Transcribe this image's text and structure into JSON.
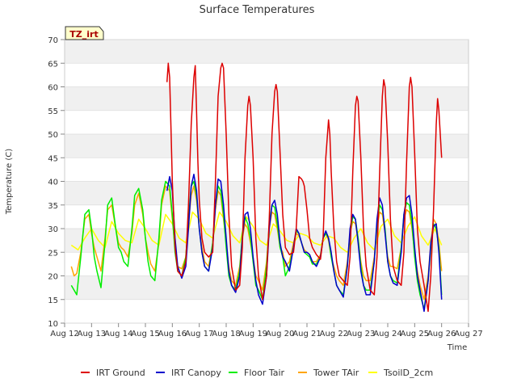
{
  "chart_data": {
    "type": "line",
    "title": "Surface Temperatures",
    "xlabel": "Time",
    "ylabel": "Temperature (C)",
    "annotation": "TZ_irt",
    "xlim": [
      12,
      27
    ],
    "ylim": [
      10,
      70
    ],
    "x_ticks": [
      12,
      13,
      14,
      15,
      16,
      17,
      18,
      19,
      20,
      21,
      22,
      23,
      24,
      25,
      26,
      27
    ],
    "x_tick_labels": [
      "Aug 12",
      "Aug 13",
      "Aug 14",
      "Aug 15",
      "Aug 16",
      "Aug 17",
      "Aug 18",
      "Aug 19",
      "Aug 20",
      "Aug 21",
      "Aug 22",
      "Aug 23",
      "Aug 24",
      "Aug 25",
      "Aug 26",
      "Aug 27"
    ],
    "y_ticks": [
      10,
      15,
      20,
      25,
      30,
      35,
      40,
      45,
      50,
      55,
      60,
      65,
      70
    ],
    "y_tick_labels": [
      "10",
      "15",
      "20",
      "25",
      "30",
      "35",
      "40",
      "45",
      "50",
      "55",
      "60",
      "65",
      "70"
    ],
    "grid": true,
    "legend_position": "bottom",
    "series": [
      {
        "name": "IRT Ground",
        "color": "#dd0000",
        "x": [
          15.8,
          15.85,
          15.9,
          15.95,
          16.0,
          16.1,
          16.2,
          16.35,
          16.5,
          16.6,
          16.7,
          16.8,
          16.85,
          16.9,
          16.95,
          17.0,
          17.1,
          17.2,
          17.35,
          17.5,
          17.6,
          17.7,
          17.8,
          17.85,
          17.9,
          18.0,
          18.1,
          18.2,
          18.35,
          18.5,
          18.6,
          18.7,
          18.8,
          18.85,
          18.9,
          19.0,
          19.1,
          19.2,
          19.35,
          19.5,
          19.6,
          19.7,
          19.8,
          19.85,
          19.9,
          20.0,
          20.1,
          20.2,
          20.35,
          20.5,
          20.6,
          20.7,
          20.8,
          20.85,
          20.9,
          21.0,
          21.1,
          21.2,
          21.35,
          21.5,
          21.6,
          21.7,
          21.8,
          21.85,
          21.9,
          22.0,
          22.1,
          22.2,
          22.35,
          22.5,
          22.6,
          22.7,
          22.8,
          22.85,
          22.9,
          23.0,
          23.1,
          23.2,
          23.35,
          23.5,
          23.6,
          23.7,
          23.8,
          23.85,
          23.9,
          24.0,
          24.1,
          24.2,
          24.35,
          24.5,
          24.6,
          24.7,
          24.8,
          24.85,
          24.9,
          25.0,
          25.1,
          25.2,
          25.35,
          25.5,
          25.6,
          25.7,
          25.8,
          25.85,
          25.9,
          26.0
        ],
        "y": [
          61.0,
          65.0,
          62.0,
          51.0,
          40.0,
          26.0,
          21.0,
          20.0,
          23.0,
          35.0,
          52.0,
          62.0,
          64.5,
          55.0,
          44.0,
          36.0,
          28.0,
          25.0,
          24.0,
          25.0,
          40.0,
          58.0,
          64.0,
          65.0,
          64.0,
          50.0,
          33.0,
          22.0,
          17.0,
          18.0,
          26.0,
          45.0,
          56.0,
          58.0,
          56.0,
          45.0,
          28.0,
          20.0,
          15.0,
          20.0,
          32.0,
          50.0,
          59.0,
          60.5,
          59.0,
          46.0,
          33.0,
          26.0,
          24.5,
          25.0,
          30.0,
          41.0,
          40.5,
          40.0,
          39.0,
          34.0,
          28.0,
          26.0,
          24.5,
          23.5,
          28.0,
          45.0,
          53.0,
          50.0,
          42.0,
          30.0,
          23.0,
          20.0,
          19.0,
          18.0,
          24.0,
          42.0,
          56.0,
          58.0,
          57.0,
          45.0,
          30.0,
          22.0,
          17.0,
          16.0,
          24.0,
          42.0,
          58.0,
          61.5,
          60.0,
          48.0,
          32.0,
          22.0,
          19.0,
          18.0,
          25.0,
          44.0,
          60.0,
          62.0,
          60.0,
          46.0,
          30.0,
          23.0,
          18.0,
          12.5,
          20.0,
          34.0,
          52.0,
          57.5,
          55.0,
          45.0
        ]
      },
      {
        "name": "IRT Canopy",
        "color": "#0000cc",
        "x": [
          15.8,
          15.9,
          16.0,
          16.1,
          16.2,
          16.35,
          16.5,
          16.6,
          16.7,
          16.8,
          16.9,
          17.0,
          17.1,
          17.2,
          17.35,
          17.5,
          17.6,
          17.7,
          17.8,
          17.9,
          18.0,
          18.1,
          18.2,
          18.35,
          18.5,
          18.6,
          18.7,
          18.8,
          18.9,
          19.0,
          19.1,
          19.2,
          19.35,
          19.5,
          19.6,
          19.7,
          19.8,
          19.9,
          20.0,
          20.1,
          20.2,
          20.35,
          20.5,
          20.6,
          20.7,
          20.8,
          20.9,
          21.0,
          21.1,
          21.2,
          21.35,
          21.5,
          21.6,
          21.7,
          21.8,
          21.9,
          22.0,
          22.1,
          22.2,
          22.35,
          22.5,
          22.6,
          22.7,
          22.8,
          22.9,
          23.0,
          23.1,
          23.2,
          23.35,
          23.5,
          23.6,
          23.7,
          23.8,
          23.9,
          24.0,
          24.1,
          24.2,
          24.35,
          24.5,
          24.6,
          24.7,
          24.8,
          24.9,
          25.0,
          25.1,
          25.2,
          25.35,
          25.5,
          25.6,
          25.7,
          25.8,
          25.9,
          26.0
        ],
        "y": [
          38.0,
          41.0,
          38.0,
          28.0,
          22.0,
          19.5,
          22.0,
          30.0,
          39.0,
          41.5,
          38.0,
          30.0,
          25.0,
          22.0,
          21.0,
          26.0,
          35.0,
          40.5,
          40.0,
          35.0,
          28.0,
          21.0,
          18.0,
          16.5,
          20.0,
          28.0,
          33.0,
          33.5,
          30.0,
          24.0,
          19.0,
          16.0,
          14.0,
          20.0,
          30.0,
          35.0,
          36.0,
          33.0,
          27.0,
          24.0,
          23.0,
          21.0,
          26.0,
          30.0,
          29.0,
          27.0,
          25.0,
          25.0,
          24.5,
          23.0,
          22.0,
          24.0,
          28.0,
          29.5,
          28.0,
          25.0,
          21.0,
          18.0,
          17.0,
          15.5,
          22.0,
          30.0,
          33.0,
          32.0,
          27.0,
          21.0,
          18.0,
          16.0,
          16.0,
          23.0,
          32.0,
          36.5,
          35.0,
          29.0,
          23.0,
          20.0,
          18.5,
          18.0,
          25.0,
          33.0,
          36.5,
          37.0,
          33.0,
          26.0,
          20.0,
          17.0,
          12.5,
          19.0,
          27.0,
          30.5,
          31.0,
          25.0,
          15.0
        ]
      },
      {
        "name": "Floor Tair",
        "color": "#00ee00",
        "x": [
          12.25,
          12.35,
          12.45,
          12.6,
          12.75,
          12.9,
          13.0,
          13.1,
          13.2,
          13.35,
          13.5,
          13.6,
          13.75,
          13.9,
          14.0,
          14.1,
          14.2,
          14.35,
          14.5,
          14.6,
          14.75,
          14.9,
          15.0,
          15.1,
          15.2,
          15.35,
          15.5,
          15.6,
          15.75,
          15.9,
          16.0,
          16.1,
          16.2,
          16.35,
          16.5,
          16.6,
          16.7,
          16.8,
          16.9,
          17.0,
          17.1,
          17.2,
          17.35,
          17.5,
          17.6,
          17.7,
          17.8,
          17.9,
          18.0,
          18.1,
          18.2,
          18.35,
          18.5,
          18.6,
          18.7,
          18.8,
          18.9,
          19.0,
          19.1,
          19.2,
          19.35,
          19.5,
          19.6,
          19.7,
          19.8,
          19.9,
          20.0,
          20.1,
          20.2,
          20.35,
          20.5,
          20.6,
          20.7,
          20.8,
          20.9,
          21.0,
          21.1,
          21.2,
          21.35,
          21.5,
          21.6,
          21.7,
          21.8,
          21.9,
          22.0,
          22.1,
          22.2,
          22.35,
          22.5,
          22.6,
          22.7,
          22.8,
          22.9,
          23.0,
          23.1,
          23.2,
          23.35,
          23.5,
          23.6,
          23.7,
          23.8,
          23.9,
          24.0,
          24.1,
          24.2,
          24.35,
          24.5,
          24.6,
          24.7,
          24.8,
          24.9,
          25.0,
          25.1,
          25.2,
          25.35,
          25.5,
          25.6,
          25.7,
          25.8,
          25.9,
          26.0
        ],
        "y": [
          18.0,
          17.0,
          16.0,
          24.0,
          33.0,
          34.0,
          30.0,
          24.0,
          21.0,
          17.5,
          27.0,
          35.0,
          36.5,
          30.0,
          26.0,
          25.0,
          23.0,
          22.0,
          30.0,
          37.0,
          38.5,
          34.0,
          28.0,
          23.0,
          20.0,
          19.0,
          28.0,
          36.0,
          40.0,
          39.0,
          33.0,
          25.0,
          21.0,
          20.0,
          24.0,
          32.0,
          39.0,
          40.0,
          37.0,
          30.0,
          25.0,
          22.0,
          21.0,
          27.0,
          35.0,
          39.0,
          38.0,
          33.0,
          26.0,
          20.0,
          18.0,
          17.0,
          21.0,
          29.0,
          32.5,
          31.0,
          28.0,
          23.0,
          18.0,
          17.0,
          15.0,
          22.0,
          31.0,
          35.0,
          34.5,
          31.0,
          26.0,
          24.0,
          20.0,
          22.0,
          26.0,
          29.5,
          29.0,
          27.0,
          25.0,
          24.5,
          24.0,
          22.5,
          22.5,
          24.0,
          28.0,
          29.0,
          28.0,
          24.0,
          21.0,
          18.0,
          17.0,
          16.0,
          22.0,
          29.0,
          32.5,
          32.0,
          28.0,
          22.0,
          18.0,
          17.0,
          17.0,
          23.0,
          31.0,
          35.0,
          34.0,
          30.0,
          23.0,
          20.0,
          19.0,
          18.5,
          26.0,
          33.0,
          35.5,
          35.0,
          31.0,
          24.0,
          19.0,
          16.0,
          13.0,
          19.0,
          26.0,
          31.0,
          30.0,
          26.0,
          16.0
        ]
      },
      {
        "name": "Tower TAir",
        "color": "#ffa500",
        "x": [
          12.25,
          12.35,
          12.45,
          12.6,
          12.75,
          12.9,
          13.0,
          13.1,
          13.2,
          13.35,
          13.5,
          13.6,
          13.75,
          13.9,
          14.0,
          14.1,
          14.2,
          14.35,
          14.5,
          14.6,
          14.75,
          14.9,
          15.0,
          15.1,
          15.2,
          15.35,
          15.5,
          15.6,
          15.75,
          15.9,
          16.0,
          16.1,
          16.2,
          16.35,
          16.5,
          16.6,
          16.7,
          16.8,
          16.9,
          17.0,
          17.1,
          17.2,
          17.35,
          17.5,
          17.6,
          17.7,
          17.8,
          17.9,
          18.0,
          18.1,
          18.2,
          18.35,
          18.5,
          18.6,
          18.7,
          18.8,
          18.9,
          19.0,
          19.1,
          19.2,
          19.35,
          19.5,
          19.6,
          19.7,
          19.8,
          19.9,
          20.0,
          20.1,
          20.2,
          20.35,
          20.5,
          20.6,
          20.7,
          20.8,
          20.9,
          21.0,
          21.1,
          21.2,
          21.35,
          21.5,
          21.6,
          21.7,
          21.8,
          21.9,
          22.0,
          22.1,
          22.2,
          22.35,
          22.5,
          22.6,
          22.7,
          22.8,
          22.9,
          23.0,
          23.1,
          23.2,
          23.35,
          23.5,
          23.6,
          23.7,
          23.8,
          23.9,
          24.0,
          24.1,
          24.2,
          24.35,
          24.5,
          24.6,
          24.7,
          24.8,
          24.9,
          25.0,
          25.1,
          25.2,
          25.35,
          25.5,
          25.6,
          25.7,
          25.8,
          25.9,
          26.0
        ],
        "y": [
          22.0,
          20.0,
          20.5,
          25.0,
          32.0,
          33.0,
          29.0,
          26.0,
          24.0,
          21.0,
          28.0,
          34.0,
          35.0,
          30.0,
          27.0,
          26.0,
          25.5,
          24.0,
          29.0,
          35.0,
          37.5,
          33.0,
          28.0,
          25.0,
          22.5,
          21.0,
          27.0,
          35.0,
          39.0,
          38.0,
          32.0,
          26.0,
          22.0,
          21.5,
          24.0,
          31.0,
          37.0,
          39.0,
          36.0,
          30.0,
          26.0,
          23.0,
          22.0,
          27.0,
          34.0,
          38.0,
          37.0,
          32.0,
          27.0,
          22.0,
          19.0,
          18.0,
          22.0,
          28.0,
          31.0,
          30.0,
          27.0,
          24.0,
          20.0,
          19.0,
          17.0,
          23.0,
          30.0,
          33.5,
          33.0,
          30.0,
          26.0,
          25.0,
          22.0,
          23.0,
          27.0,
          29.0,
          28.5,
          27.0,
          25.5,
          25.0,
          24.5,
          23.0,
          23.0,
          24.5,
          28.0,
          29.0,
          27.5,
          24.0,
          22.0,
          20.0,
          19.0,
          18.0,
          23.0,
          29.0,
          31.5,
          31.0,
          28.0,
          23.0,
          20.0,
          19.0,
          19.0,
          24.0,
          30.0,
          33.5,
          33.0,
          29.0,
          24.0,
          22.0,
          22.0,
          21.5,
          26.0,
          32.0,
          34.0,
          33.5,
          30.0,
          25.0,
          21.0,
          18.0,
          15.0,
          20.0,
          27.0,
          32.0,
          31.0,
          27.0,
          21.0
        ]
      },
      {
        "name": "TsoilD_2cm",
        "color": "#ffff00",
        "x": [
          12.25,
          12.5,
          12.75,
          13.0,
          13.25,
          13.5,
          13.75,
          14.0,
          14.25,
          14.5,
          14.75,
          15.0,
          15.25,
          15.5,
          15.75,
          16.0,
          16.25,
          16.5,
          16.75,
          17.0,
          17.25,
          17.5,
          17.75,
          18.0,
          18.25,
          18.5,
          18.75,
          19.0,
          19.25,
          19.5,
          19.75,
          20.0,
          20.25,
          20.5,
          20.75,
          21.0,
          21.25,
          21.5,
          21.75,
          22.0,
          22.25,
          22.5,
          22.75,
          23.0,
          23.25,
          23.5,
          23.75,
          24.0,
          24.25,
          24.5,
          24.75,
          25.0,
          25.25,
          25.5,
          25.75,
          26.0
        ],
        "y": [
          26.5,
          25.5,
          28.0,
          30.0,
          27.5,
          26.0,
          31.5,
          29.0,
          27.5,
          27.0,
          32.0,
          30.0,
          27.5,
          26.5,
          33.0,
          31.0,
          28.0,
          27.0,
          33.5,
          32.0,
          29.0,
          28.0,
          33.5,
          31.5,
          28.5,
          27.0,
          32.5,
          30.5,
          27.5,
          26.5,
          31.0,
          29.5,
          27.5,
          27.0,
          29.0,
          28.5,
          27.0,
          26.5,
          28.5,
          28.0,
          26.0,
          25.0,
          28.0,
          30.0,
          27.0,
          25.5,
          30.5,
          32.0,
          28.5,
          27.0,
          30.5,
          32.5,
          28.5,
          26.5,
          30.0,
          26.5
        ]
      }
    ]
  }
}
